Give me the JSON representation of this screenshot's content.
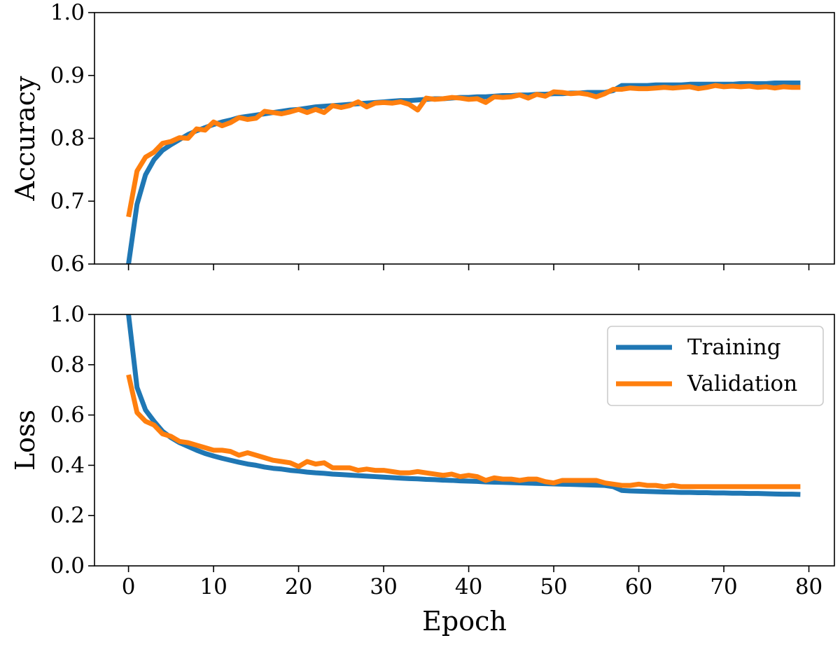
{
  "chart_data": [
    {
      "type": "line",
      "ylabel": "Accuracy",
      "xlabel": "",
      "xlim": [
        -4,
        83
      ],
      "ylim": [
        0.6,
        1.0
      ],
      "yticks": [
        0.6,
        0.7,
        0.8,
        0.9,
        1.0
      ],
      "ytick_labels": [
        "0.6",
        "0.7",
        "0.8",
        "0.9",
        "1.0"
      ],
      "show_xtick_labels": false,
      "grid": false,
      "legend": null,
      "series": [
        {
          "name": "Training",
          "color": "#1f77b4",
          "x": [
            0,
            1,
            2,
            3,
            4,
            5,
            6,
            7,
            8,
            9,
            10,
            11,
            12,
            13,
            14,
            15,
            16,
            17,
            18,
            19,
            20,
            21,
            22,
            23,
            24,
            25,
            26,
            27,
            28,
            29,
            30,
            31,
            32,
            33,
            34,
            35,
            36,
            37,
            38,
            39,
            40,
            41,
            42,
            43,
            44,
            45,
            46,
            47,
            48,
            49,
            50,
            51,
            52,
            53,
            54,
            55,
            56,
            57,
            58,
            59,
            60,
            61,
            62,
            63,
            64,
            65,
            66,
            67,
            68,
            69,
            70,
            71,
            72,
            73,
            74,
            75,
            76,
            77,
            78,
            79
          ],
          "values": [
            0.6,
            0.695,
            0.742,
            0.766,
            0.781,
            0.79,
            0.798,
            0.806,
            0.812,
            0.817,
            0.822,
            0.826,
            0.829,
            0.833,
            0.835,
            0.837,
            0.839,
            0.841,
            0.843,
            0.845,
            0.846,
            0.848,
            0.85,
            0.851,
            0.852,
            0.853,
            0.854,
            0.855,
            0.856,
            0.857,
            0.858,
            0.859,
            0.86,
            0.86,
            0.861,
            0.862,
            0.863,
            0.863,
            0.864,
            0.865,
            0.865,
            0.866,
            0.866,
            0.867,
            0.868,
            0.868,
            0.869,
            0.869,
            0.87,
            0.87,
            0.871,
            0.871,
            0.872,
            0.872,
            0.873,
            0.873,
            0.873,
            0.876,
            0.884,
            0.884,
            0.884,
            0.884,
            0.885,
            0.885,
            0.885,
            0.885,
            0.886,
            0.886,
            0.886,
            0.886,
            0.886,
            0.886,
            0.887,
            0.887,
            0.887,
            0.887,
            0.888,
            0.888,
            0.888,
            0.888
          ]
        },
        {
          "name": "Validation",
          "color": "#ff7f0e",
          "x": [
            0,
            1,
            2,
            3,
            4,
            5,
            6,
            7,
            8,
            9,
            10,
            11,
            12,
            13,
            14,
            15,
            16,
            17,
            18,
            19,
            20,
            21,
            22,
            23,
            24,
            25,
            26,
            27,
            28,
            29,
            30,
            31,
            32,
            33,
            34,
            35,
            36,
            37,
            38,
            39,
            40,
            41,
            42,
            43,
            44,
            45,
            46,
            47,
            48,
            49,
            50,
            51,
            52,
            53,
            54,
            55,
            56,
            57,
            58,
            59,
            60,
            61,
            62,
            63,
            64,
            65,
            66,
            67,
            68,
            69,
            70,
            71,
            72,
            73,
            74,
            75,
            76,
            77,
            78,
            79
          ],
          "values": [
            0.675,
            0.748,
            0.77,
            0.778,
            0.792,
            0.795,
            0.801,
            0.8,
            0.815,
            0.813,
            0.826,
            0.82,
            0.825,
            0.833,
            0.83,
            0.832,
            0.843,
            0.841,
            0.839,
            0.842,
            0.846,
            0.841,
            0.846,
            0.841,
            0.852,
            0.849,
            0.852,
            0.858,
            0.85,
            0.856,
            0.857,
            0.856,
            0.858,
            0.854,
            0.845,
            0.864,
            0.862,
            0.863,
            0.865,
            0.864,
            0.862,
            0.863,
            0.857,
            0.866,
            0.865,
            0.866,
            0.869,
            0.864,
            0.87,
            0.867,
            0.874,
            0.873,
            0.871,
            0.872,
            0.87,
            0.866,
            0.871,
            0.878,
            0.878,
            0.88,
            0.879,
            0.879,
            0.88,
            0.881,
            0.88,
            0.881,
            0.882,
            0.879,
            0.881,
            0.884,
            0.882,
            0.883,
            0.882,
            0.883,
            0.881,
            0.882,
            0.88,
            0.882,
            0.881,
            0.881
          ]
        }
      ]
    },
    {
      "type": "line",
      "ylabel": "Loss",
      "xlabel": "Epoch",
      "xlim": [
        -4,
        83
      ],
      "ylim": [
        0.0,
        1.0
      ],
      "yticks": [
        0.0,
        0.2,
        0.4,
        0.6,
        0.8,
        1.0
      ],
      "ytick_labels": [
        "0.0",
        "0.2",
        "0.4",
        "0.6",
        "0.8",
        "1.0"
      ],
      "xticks": [
        0,
        10,
        20,
        30,
        40,
        50,
        60,
        70,
        80
      ],
      "xtick_labels": [
        "0",
        "10",
        "20",
        "30",
        "40",
        "50",
        "60",
        "70",
        "80"
      ],
      "show_xtick_labels": true,
      "grid": false,
      "legend": "upper right",
      "series": [
        {
          "name": "Training",
          "color": "#1f77b4",
          "x": [
            0,
            1,
            2,
            3,
            4,
            5,
            6,
            7,
            8,
            9,
            10,
            11,
            12,
            13,
            14,
            15,
            16,
            17,
            18,
            19,
            20,
            21,
            22,
            23,
            24,
            25,
            26,
            27,
            28,
            29,
            30,
            31,
            32,
            33,
            34,
            35,
            36,
            37,
            38,
            39,
            40,
            41,
            42,
            43,
            44,
            45,
            46,
            47,
            48,
            49,
            50,
            51,
            52,
            53,
            54,
            55,
            56,
            57,
            58,
            59,
            60,
            61,
            62,
            63,
            64,
            65,
            66,
            67,
            68,
            69,
            70,
            71,
            72,
            73,
            74,
            75,
            76,
            77,
            78,
            79
          ],
          "values": [
            1.0,
            0.71,
            0.62,
            0.575,
            0.535,
            0.51,
            0.49,
            0.475,
            0.46,
            0.447,
            0.437,
            0.428,
            0.42,
            0.412,
            0.405,
            0.4,
            0.393,
            0.388,
            0.385,
            0.38,
            0.377,
            0.373,
            0.37,
            0.368,
            0.365,
            0.363,
            0.361,
            0.359,
            0.357,
            0.355,
            0.353,
            0.351,
            0.349,
            0.347,
            0.346,
            0.344,
            0.343,
            0.341,
            0.34,
            0.338,
            0.337,
            0.336,
            0.334,
            0.333,
            0.332,
            0.331,
            0.33,
            0.329,
            0.328,
            0.327,
            0.326,
            0.325,
            0.324,
            0.323,
            0.322,
            0.321,
            0.32,
            0.315,
            0.3,
            0.298,
            0.297,
            0.296,
            0.295,
            0.294,
            0.293,
            0.292,
            0.292,
            0.291,
            0.291,
            0.29,
            0.29,
            0.289,
            0.289,
            0.288,
            0.288,
            0.287,
            0.286,
            0.285,
            0.285,
            0.284
          ]
        },
        {
          "name": "Validation",
          "color": "#ff7f0e",
          "x": [
            0,
            1,
            2,
            3,
            4,
            5,
            6,
            7,
            8,
            9,
            10,
            11,
            12,
            13,
            14,
            15,
            16,
            17,
            18,
            19,
            20,
            21,
            22,
            23,
            24,
            25,
            26,
            27,
            28,
            29,
            30,
            31,
            32,
            33,
            34,
            35,
            36,
            37,
            38,
            39,
            40,
            41,
            42,
            43,
            44,
            45,
            46,
            47,
            48,
            49,
            50,
            51,
            52,
            53,
            54,
            55,
            56,
            57,
            58,
            59,
            60,
            61,
            62,
            63,
            64,
            65,
            66,
            67,
            68,
            69,
            70,
            71,
            72,
            73,
            74,
            75,
            76,
            77,
            78,
            79
          ],
          "values": [
            0.76,
            0.61,
            0.575,
            0.56,
            0.525,
            0.515,
            0.495,
            0.49,
            0.48,
            0.47,
            0.46,
            0.46,
            0.455,
            0.44,
            0.45,
            0.44,
            0.43,
            0.42,
            0.415,
            0.41,
            0.395,
            0.415,
            0.405,
            0.41,
            0.39,
            0.39,
            0.39,
            0.38,
            0.385,
            0.38,
            0.38,
            0.375,
            0.37,
            0.37,
            0.375,
            0.37,
            0.365,
            0.36,
            0.365,
            0.355,
            0.36,
            0.355,
            0.34,
            0.35,
            0.345,
            0.345,
            0.34,
            0.345,
            0.345,
            0.335,
            0.33,
            0.34,
            0.34,
            0.34,
            0.34,
            0.34,
            0.33,
            0.325,
            0.32,
            0.32,
            0.325,
            0.32,
            0.32,
            0.315,
            0.32,
            0.315,
            0.315,
            0.315,
            0.315,
            0.315,
            0.315,
            0.315,
            0.315,
            0.315,
            0.315,
            0.315,
            0.315,
            0.315,
            0.315,
            0.315
          ]
        }
      ]
    }
  ]
}
